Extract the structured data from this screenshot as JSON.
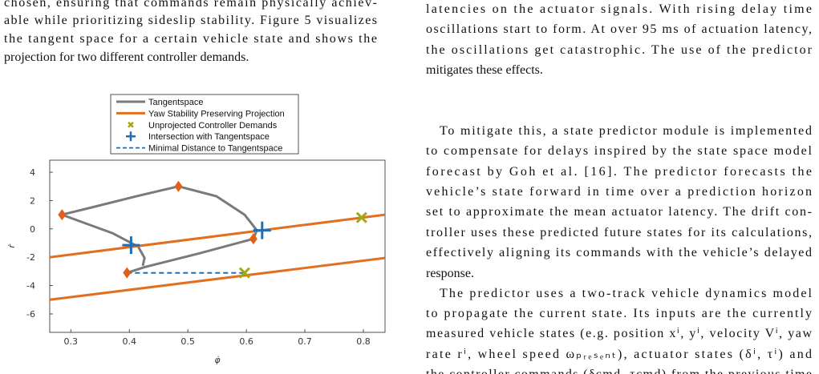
{
  "left_column": {
    "paragraphs": [
      {
        "lines": [
          "chosen, ensuring that commands remain physically achiev-",
          "able while prioritizing sideslip stability. Figure 5 visualizes",
          "the tangent space for a certain vehicle state and shows the",
          "projection for two different controller demands."
        ]
      }
    ]
  },
  "right_column": {
    "paragraphs": [
      {
        "lines": [
          "latencies on the actuator signals. With rising delay time",
          "oscillations start to form. At over 95 ms of actuation latency,",
          "the oscillations get catastrophic. The use of the predictor",
          "mitigates these effects."
        ]
      },
      {
        "lines": [
          "To mitigate this, a state predictor module is implemented",
          "to compensate for delays inspired by the state space model",
          "forecast by Goh et al. [16]. The predictor forecasts the",
          "vehicle’s state forward in time over a prediction horizon",
          "set to approximate the mean actuator latency. The drift con-",
          "troller uses these predicted future states for its calculations,",
          "effectively aligning its commands with the vehicle’s delayed",
          "response."
        ]
      },
      {
        "lines": [
          "The predictor uses a two-track vehicle dynamics model",
          "to propagate the current state. Its inputs are the currently",
          "measured vehicle states (e.g. position xⁱ, yⁱ, velocity Vⁱ, yaw",
          "rate rⁱ, wheel speed ωₚᵣₑₛₑₙₜ), actuator states (δⁱ, τⁱ) and",
          "the controller commands (δcmd, τcmd) from the previous time"
        ]
      }
    ]
  },
  "chart_data": {
    "type": "line",
    "xlabel": "φ̇",
    "ylabel": "ṙ",
    "xlim": [
      0.264,
      0.837
    ],
    "ylim": [
      -7.3,
      4.85
    ],
    "xticks": [
      0.3,
      0.4,
      0.5,
      0.6,
      0.7,
      0.8
    ],
    "yticks": [
      -6,
      -4,
      -2,
      0,
      2,
      4
    ],
    "series": [
      {
        "name": "Tangentspace",
        "color": "#7a7a7a",
        "style": "line",
        "x": [
          0.285,
          0.344,
          0.412,
          0.484,
          0.549,
          0.597,
          0.618,
          0.612,
          0.522,
          0.426,
          0.396,
          null,
          0.285,
          0.371,
          0.415,
          0.426,
          0.423
        ],
        "y": [
          1.0,
          1.6,
          2.3,
          3.0,
          2.3,
          1.0,
          -0.1,
          -0.7,
          -1.7,
          -2.7,
          -3.1,
          null,
          1.0,
          -0.3,
          -1.25,
          -2.05,
          -2.6
        ]
      },
      {
        "name": "Yaw Stability Preserving Projection",
        "color": "#e07020",
        "style": "line",
        "x": [
          0.264,
          0.837,
          null,
          0.264,
          0.837
        ],
        "y": [
          -2.0,
          1.0,
          null,
          -5.0,
          -2.05
        ]
      },
      {
        "name": "Unprojected Controller Demands",
        "color": "#a3a814",
        "style": "marker",
        "marker": "x",
        "x": [
          0.797,
          0.597
        ],
        "y": [
          0.8,
          -3.1
        ]
      },
      {
        "name": "Intersection with Tangentspace",
        "color": "#1f6fb4",
        "style": "marker",
        "marker": "plus",
        "x": [
          0.403,
          0.627
        ],
        "y": [
          -1.15,
          -0.1
        ]
      },
      {
        "name": "Minimal Distance to Tangentspace",
        "color": "#1f6fb4",
        "style": "dashed",
        "x": [
          0.396,
          0.597
        ],
        "y": [
          -3.1,
          -3.1
        ]
      }
    ],
    "vertices": {
      "color": "#e0601a",
      "marker": "diamond",
      "x": [
        0.285,
        0.484,
        0.612,
        0.396
      ],
      "y": [
        1.0,
        3.0,
        -0.7,
        -3.1
      ]
    }
  }
}
